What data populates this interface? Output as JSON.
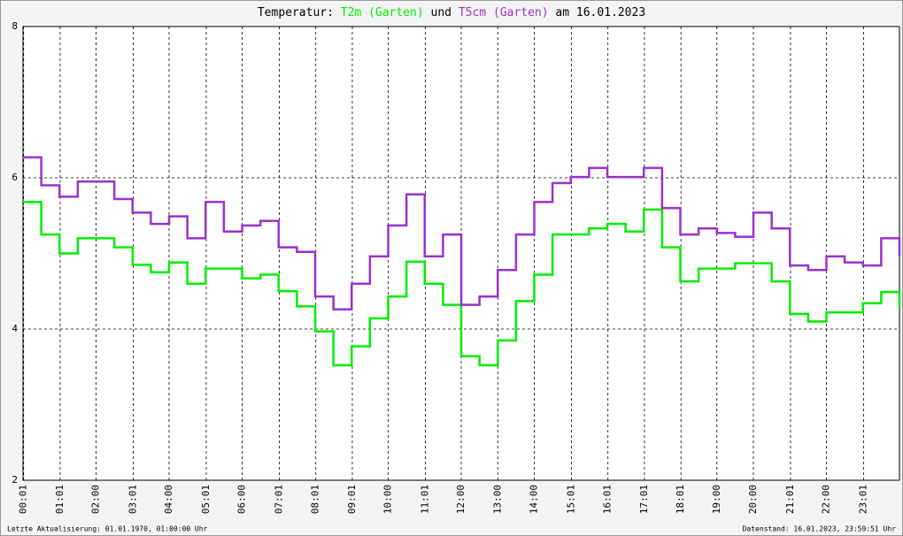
{
  "chart_data": {
    "type": "line",
    "title_prefix": "Temperatur:",
    "title_middle": "und",
    "title_suffix": "am 16.01.2023",
    "footer_left": "Letzte Aktualisierung: 01.01.1970, 01:00:00 Uhr",
    "footer_right": "Datenstand: 16.01.2023, 23:59:51 Uhr",
    "x": [
      0,
      0.5,
      1,
      1.5,
      2,
      2.5,
      3,
      3.5,
      4,
      4.5,
      5,
      5.5,
      6,
      6.5,
      7,
      7.5,
      8,
      8.5,
      9,
      9.5,
      10,
      10.5,
      11,
      11.5,
      12,
      12.5,
      13,
      13.5,
      14,
      14.5,
      15,
      15.5,
      16,
      16.5,
      17,
      17.5,
      18,
      18.5,
      19,
      19.5,
      20,
      20.5,
      21,
      21.5,
      22,
      22.5,
      23,
      23.5,
      24
    ],
    "series": [
      {
        "name": "T2m (Garten)",
        "color": "#00ee00",
        "values": [
          5.68,
          5.25,
          5.0,
          5.2,
          5.2,
          5.08,
          4.85,
          4.75,
          4.88,
          4.6,
          4.8,
          4.8,
          4.67,
          4.72,
          4.5,
          4.3,
          3.97,
          3.52,
          3.77,
          4.14,
          4.43,
          4.89,
          4.6,
          4.32,
          3.64,
          3.52,
          3.85,
          4.37,
          4.72,
          5.25,
          5.25,
          5.33,
          5.39,
          5.29,
          5.58,
          5.08,
          4.63,
          4.8,
          4.8,
          4.87,
          4.87,
          4.63,
          4.2,
          4.1,
          4.22,
          4.22,
          4.34,
          4.49,
          4.28
        ]
      },
      {
        "name": "T5cm (Garten)",
        "color": "#9a32cd",
        "values": [
          6.27,
          5.9,
          5.75,
          5.95,
          5.95,
          5.72,
          5.54,
          5.39,
          5.49,
          5.2,
          5.68,
          5.29,
          5.37,
          5.43,
          5.08,
          5.02,
          4.43,
          4.26,
          4.6,
          4.96,
          5.37,
          5.78,
          4.96,
          5.25,
          4.32,
          4.43,
          4.78,
          5.25,
          5.68,
          5.93,
          6.01,
          6.13,
          6.01,
          6.01,
          6.13,
          5.6,
          5.25,
          5.33,
          5.27,
          5.22,
          5.54,
          5.33,
          4.84,
          4.78,
          4.96,
          4.88,
          4.84,
          5.2,
          4.96
        ]
      }
    ],
    "xlim": [
      0,
      24
    ],
    "xticks": [
      {
        "value": 0.017,
        "label": "00:01"
      },
      {
        "value": 1.017,
        "label": "01:01"
      },
      {
        "value": 2,
        "label": "02:00"
      },
      {
        "value": 3.017,
        "label": "03:01"
      },
      {
        "value": 4,
        "label": "04:00"
      },
      {
        "value": 5.017,
        "label": "05:01"
      },
      {
        "value": 6,
        "label": "06:00"
      },
      {
        "value": 7.017,
        "label": "07:01"
      },
      {
        "value": 8.017,
        "label": "08:01"
      },
      {
        "value": 9.017,
        "label": "09:01"
      },
      {
        "value": 10,
        "label": "10:00"
      },
      {
        "value": 11.017,
        "label": "11:01"
      },
      {
        "value": 12,
        "label": "12:00"
      },
      {
        "value": 13,
        "label": "13:00"
      },
      {
        "value": 14,
        "label": "14:00"
      },
      {
        "value": 15.017,
        "label": "15:01"
      },
      {
        "value": 16.017,
        "label": "16:01"
      },
      {
        "value": 17.017,
        "label": "17:01"
      },
      {
        "value": 18.017,
        "label": "18:01"
      },
      {
        "value": 19,
        "label": "19:00"
      },
      {
        "value": 20,
        "label": "20:00"
      },
      {
        "value": 21.017,
        "label": "21:01"
      },
      {
        "value": 22,
        "label": "22:00"
      },
      {
        "value": 23.017,
        "label": "23:01"
      }
    ],
    "ylim": [
      2,
      8
    ],
    "yticks": [
      2,
      4,
      6,
      8
    ],
    "grid": true
  }
}
